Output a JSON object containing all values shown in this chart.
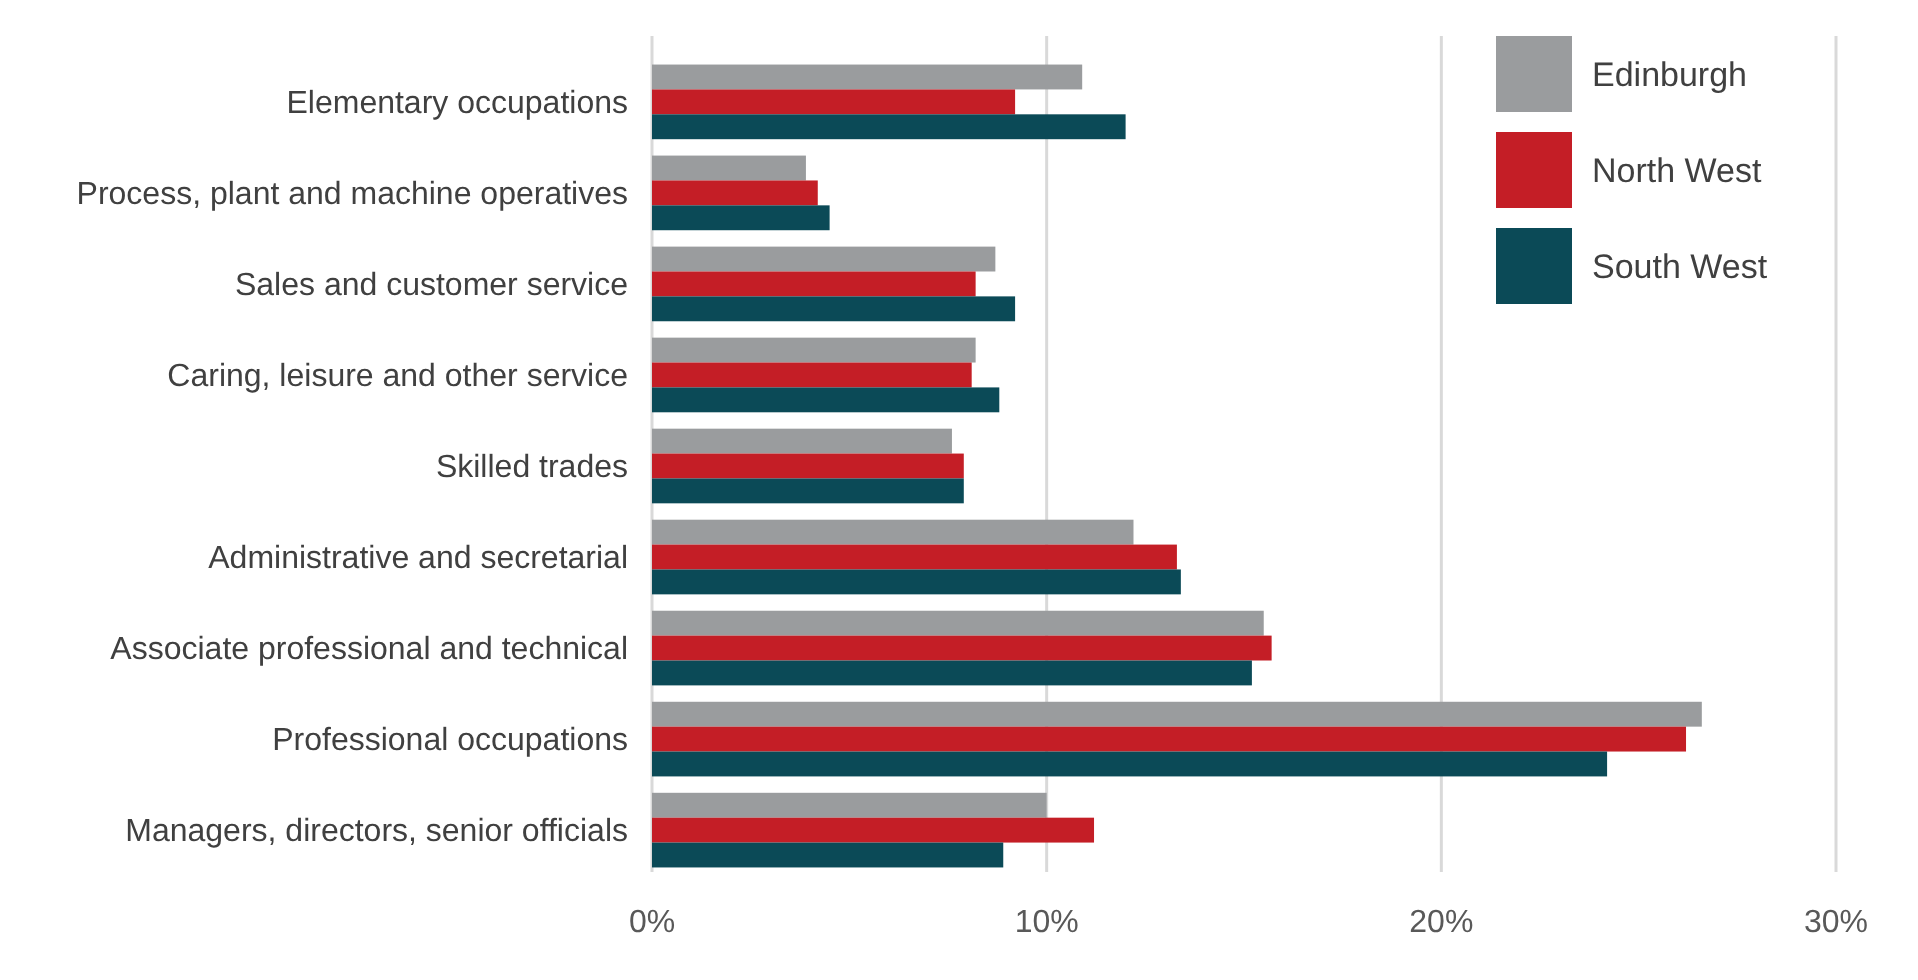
{
  "chart_data": {
    "type": "bar",
    "orientation": "horizontal",
    "categories": [
      "Elementary occupations",
      "Process, plant and machine operatives",
      "Sales and customer service",
      "Caring, leisure and other service",
      "Skilled trades",
      "Administrative and secretarial",
      "Associate professional and technical",
      "Professional occupations",
      "Managers, directors, senior officials"
    ],
    "series": [
      {
        "name": "Edinburgh",
        "color": "#9a9c9e",
        "values": [
          10.9,
          3.9,
          8.7,
          8.2,
          7.6,
          12.2,
          15.5,
          26.6,
          10.0
        ]
      },
      {
        "name": "North West",
        "color": "#c41e26",
        "values": [
          9.2,
          4.2,
          8.2,
          8.1,
          7.9,
          13.3,
          15.7,
          26.2,
          11.2
        ]
      },
      {
        "name": "South West",
        "color": "#0b4a57",
        "values": [
          12.0,
          4.5,
          9.2,
          8.8,
          7.9,
          13.4,
          15.2,
          24.2,
          8.9
        ]
      }
    ],
    "xlim": [
      0,
      30
    ],
    "xticks": [
      {
        "value": 0,
        "label": "0%"
      },
      {
        "value": 10,
        "label": "10%"
      },
      {
        "value": 20,
        "label": "20%"
      },
      {
        "value": 30,
        "label": "30%"
      }
    ],
    "grid": "x",
    "legend": "top right"
  }
}
